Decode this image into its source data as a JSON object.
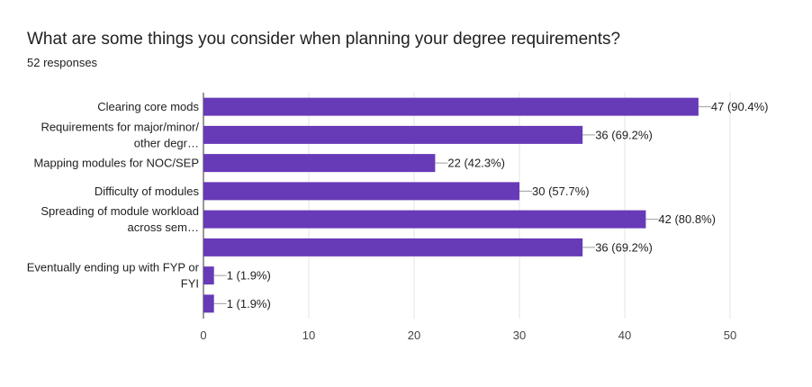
{
  "header": {
    "question": "What are some things you consider when planning your degree requirements?",
    "responses": "52 responses"
  },
  "colors": {
    "bar": "#673ab7",
    "grid": "#e6e6e6",
    "axis": "#333333",
    "leader": "#9e9e9e"
  },
  "chart_data": {
    "type": "bar",
    "orientation": "horizontal",
    "categories": [
      [
        "Clearing core mods"
      ],
      [
        "Requirements for major/minor/",
        "other degr…"
      ],
      [
        "Mapping modules for NOC/SEP"
      ],
      [
        "Difficulty of modules"
      ],
      [
        "Spreading of module workload",
        "across sem…"
      ],
      [],
      [
        "Eventually ending up with FYP or",
        "FYI"
      ],
      []
    ],
    "values": [
      47,
      36,
      22,
      30,
      42,
      36,
      1,
      1
    ],
    "value_labels": [
      "47 (90.4%)",
      "36 (69.2%)",
      "22 (42.3%)",
      "30 (57.7%)",
      "42 (80.8%)",
      "36 (69.2%)",
      "1 (1.9%)",
      "1 (1.9%)"
    ],
    "xlim": [
      0,
      50
    ],
    "xticks": [
      "0",
      "10",
      "20",
      "30",
      "40",
      "50"
    ],
    "grid": true
  }
}
